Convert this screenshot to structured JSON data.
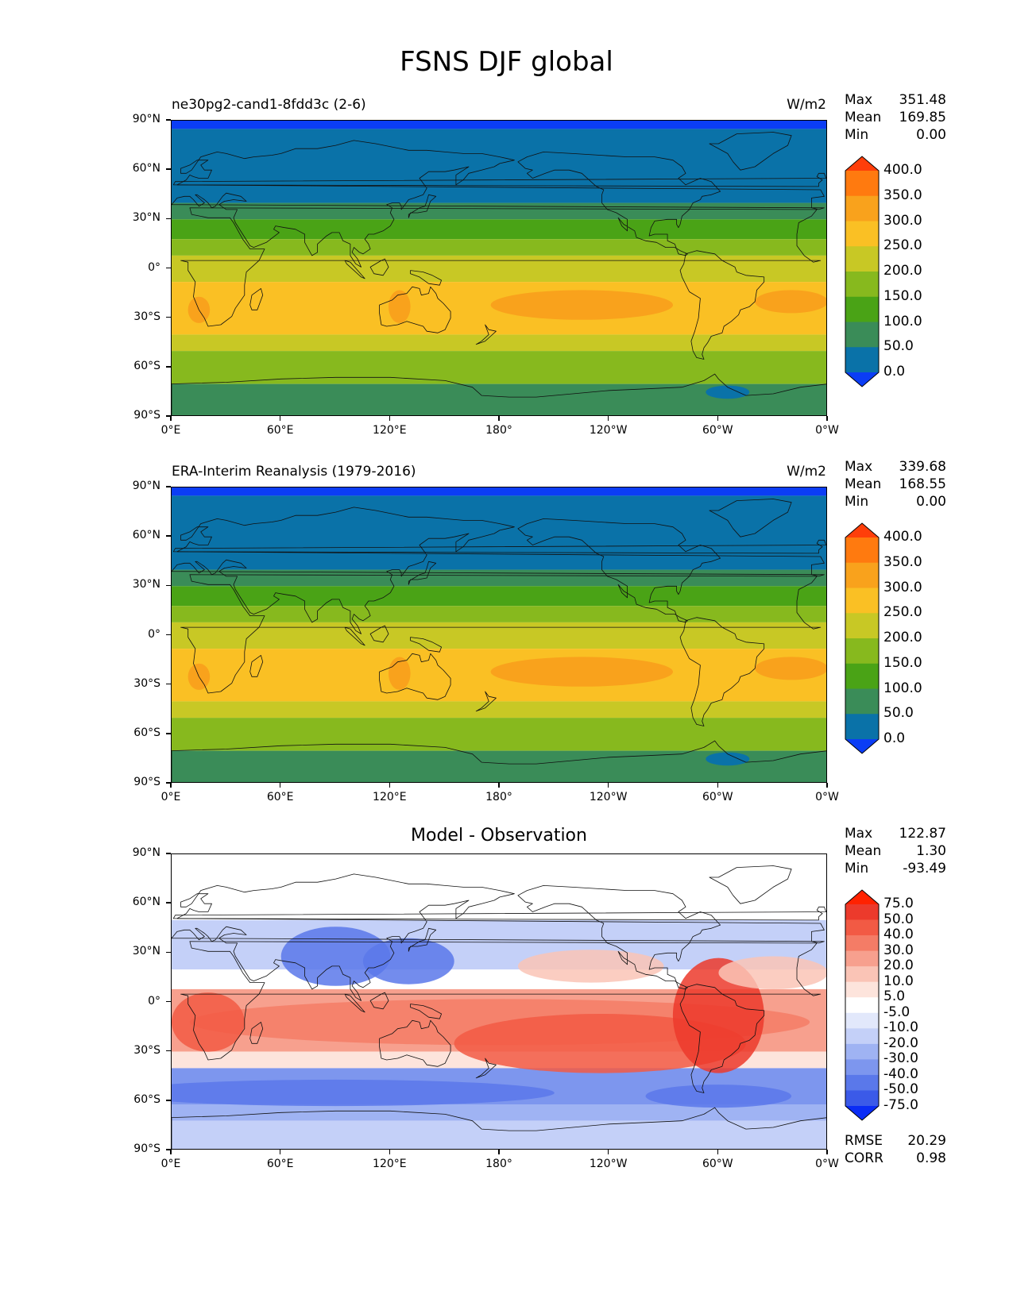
{
  "figure_title": "FSNS DJF global",
  "lat_ticks": [
    "90°N",
    "60°N",
    "30°N",
    "0°",
    "30°S",
    "60°S",
    "90°S"
  ],
  "lon_ticks": [
    "0°E",
    "60°E",
    "120°E",
    "180°",
    "120°W",
    "60°W",
    "0°W"
  ],
  "panels": [
    {
      "id": "model",
      "left_title": "ne30pg2-cand1-8fdd3c (2-6)",
      "center_title": "",
      "units": "W/m2",
      "stats": [
        {
          "label": "Max",
          "value": "351.48"
        },
        {
          "label": "Mean",
          "value": "169.85"
        },
        {
          "label": "Min",
          "value": "0.00"
        }
      ],
      "colorbar_labels": [
        "400.0",
        "350.0",
        "300.0",
        "250.0",
        "200.0",
        "150.0",
        "100.0",
        "50.0",
        "0.0"
      ],
      "colorbar_colors": [
        "#ff3e0a",
        "#ff7a0f",
        "#f9a21c",
        "#fac024",
        "#c8c825",
        "#87b91e",
        "#4aa316",
        "#3a8c58",
        "#0a72a8",
        "#0b3df5"
      ]
    },
    {
      "id": "observation",
      "left_title": "ERA-Interim Reanalysis (1979-2016)",
      "center_title": "",
      "units": "W/m2",
      "stats": [
        {
          "label": "Max",
          "value": "339.68"
        },
        {
          "label": "Mean",
          "value": "168.55"
        },
        {
          "label": "Min",
          "value": "0.00"
        }
      ],
      "colorbar_labels": [
        "400.0",
        "350.0",
        "300.0",
        "250.0",
        "200.0",
        "150.0",
        "100.0",
        "50.0",
        "0.0"
      ],
      "colorbar_colors": [
        "#ff3e0a",
        "#ff7a0f",
        "#f9a21c",
        "#fac024",
        "#c8c825",
        "#87b91e",
        "#4aa316",
        "#3a8c58",
        "#0a72a8",
        "#0b3df5"
      ]
    },
    {
      "id": "difference",
      "left_title": "",
      "center_title": "Model - Observation",
      "units": "",
      "stats": [
        {
          "label": "Max",
          "value": "122.87"
        },
        {
          "label": "Mean",
          "value": "1.30"
        },
        {
          "label": "Min",
          "value": "-93.49"
        }
      ],
      "colorbar_labels": [
        "75.0",
        "50.0",
        "40.0",
        "30.0",
        "20.0",
        "10.0",
        "5.0",
        "-5.0",
        "-10.0",
        "-20.0",
        "-30.0",
        "-40.0",
        "-50.0",
        "-75.0"
      ],
      "colorbar_colors": [
        "#ff2200",
        "#ec3a2c",
        "#f25a44",
        "#f47c66",
        "#f7a08e",
        "#fac4b6",
        "#fde4dc",
        "#ffffff",
        "#e2e8fb",
        "#c4d0f8",
        "#9fb3f3",
        "#7d96ee",
        "#5a78ea",
        "#3b5ae8",
        "#0a2cf5"
      ],
      "bottom_stats": [
        {
          "label": "RMSE",
          "value": "20.29"
        },
        {
          "label": "CORR",
          "value": "0.98"
        }
      ]
    }
  ]
}
